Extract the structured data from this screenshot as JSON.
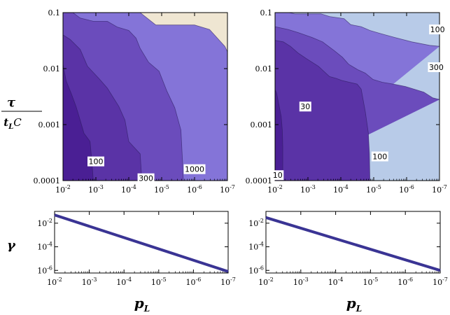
{
  "labels": {
    "y_top": "τ",
    "y_top_denominator": "t",
    "y_top_denominator_sub": "L",
    "y_top_denominator_tail": "C",
    "y_bottom": "γ",
    "x_main": "p",
    "x_main_sub": "L"
  },
  "colors": {
    "c1": "#4a1f94",
    "c2": "#5a33a6",
    "c3": "#6b4cbc",
    "c4": "#8474d8",
    "c5_left": "#efe6d2",
    "c5_right": "#b8cbe8",
    "line": "#3a3494"
  },
  "chart_data": [
    {
      "type": "contour",
      "xscale": "log",
      "yscale": "log",
      "xlim": [
        0.01,
        1e-07
      ],
      "ylim": [
        0.0001,
        0.1
      ],
      "x_ticks": [
        {
          "base": "10",
          "exp": "-2"
        },
        {
          "base": "10",
          "exp": "-3"
        },
        {
          "base": "10",
          "exp": "-4"
        },
        {
          "base": "10",
          "exp": "-5"
        },
        {
          "base": "10",
          "exp": "-6"
        },
        {
          "base": "10",
          "exp": "-7"
        }
      ],
      "y_ticks": [
        "0.1",
        "0.01",
        "0.001",
        "0.0001"
      ],
      "contour_labels": [
        {
          "text": "100",
          "x": 0.001,
          "y": 0.00022
        },
        {
          "text": "300",
          "x": 3e-05,
          "y": 0.00011
        },
        {
          "text": "1000",
          "x": 1e-06,
          "y": 0.00016
        }
      ],
      "regions": [
        {
          "level": "c5_left",
          "boundary": [
            [
              0.01,
              0.1
            ],
            [
              4.5e-05,
              0.1
            ],
            [
              1.5e-05,
              0.06
            ],
            [
              1e-06,
              0.06
            ],
            [
              3.5e-07,
              0.05
            ],
            [
              1.2e-07,
              0.025
            ],
            [
              1e-07,
              0.02
            ],
            [
              1e-07,
              0.0001
            ]
          ]
        },
        {
          "level": "c4",
          "boundary": [
            [
              0.01,
              0.1
            ],
            [
              0.005,
              0.1
            ],
            [
              0.003,
              0.08
            ],
            [
              0.0012,
              0.07
            ],
            [
              0.00045,
              0.07
            ],
            [
              0.00022,
              0.055
            ],
            [
              0.0001,
              0.048
            ],
            [
              6e-05,
              0.035
            ],
            [
              4.5e-05,
              0.023
            ],
            [
              2.5e-05,
              0.013
            ],
            [
              1.2e-05,
              0.009
            ],
            [
              7e-06,
              0.004
            ],
            [
              4e-06,
              0.002
            ],
            [
              2.6e-06,
              0.0008
            ],
            [
              2.3e-06,
              0.0002
            ],
            [
              2.2e-06,
              0.0001
            ]
          ]
        },
        {
          "level": "c3",
          "boundary": [
            [
              0.01,
              0.04
            ],
            [
              0.006,
              0.033
            ],
            [
              0.003,
              0.022
            ],
            [
              0.0018,
              0.011
            ],
            [
              0.0008,
              0.0066
            ],
            [
              0.00045,
              0.0045
            ],
            [
              0.0002,
              0.0021
            ],
            [
              0.00013,
              0.0012
            ],
            [
              0.0001,
              0.0005
            ],
            [
              4.5e-05,
              0.0003
            ],
            [
              4e-05,
              0.0001
            ]
          ]
        },
        {
          "level": "c2",
          "boundary": [
            [
              0.01,
              0.012
            ],
            [
              0.008,
              0.006
            ],
            [
              0.0055,
              0.0035
            ],
            [
              0.004,
              0.0021
            ],
            [
              0.003,
              0.0012
            ],
            [
              0.0023,
              0.0007
            ],
            [
              0.0015,
              0.0005
            ],
            [
              0.0013,
              0.0002
            ],
            [
              0.0012,
              0.0001
            ]
          ]
        }
      ]
    },
    {
      "type": "contour",
      "xscale": "log",
      "yscale": "log",
      "xlim": [
        0.01,
        1e-07
      ],
      "ylim": [
        0.0001,
        0.1
      ],
      "x_ticks": [
        {
          "base": "10",
          "exp": "-2"
        },
        {
          "base": "10",
          "exp": "-3"
        },
        {
          "base": "10",
          "exp": "-4"
        },
        {
          "base": "10",
          "exp": "-5"
        },
        {
          "base": "10",
          "exp": "-6"
        },
        {
          "base": "10",
          "exp": "-7"
        }
      ],
      "y_ticks": [
        "0.1",
        "0.01",
        "0.001",
        "0.0001"
      ],
      "contour_labels": [
        {
          "text": "10",
          "x": 0.0083,
          "y": 0.000125
        },
        {
          "text": "30",
          "x": 0.0012,
          "y": 0.0021
        },
        {
          "text": "100",
          "x": 6.5e-06,
          "y": 0.00027
        },
        {
          "text": "300",
          "x": 1.25e-07,
          "y": 0.0106
        },
        {
          "text": "100",
          "x": 1.15e-07,
          "y": 0.05
        }
      ],
      "regions": [
        {
          "level": "c5_right",
          "boundary": [
            [
              0.01,
              0.1
            ],
            [
              0.0038,
              0.1
            ],
            [
              0.0025,
              0.095
            ],
            [
              0.0004,
              0.095
            ],
            [
              0.00022,
              0.085
            ],
            [
              8e-05,
              0.078
            ],
            [
              5e-05,
              0.061
            ],
            [
              2.4e-05,
              0.056
            ],
            [
              1.3e-05,
              0.048
            ],
            [
              6e-06,
              0.042
            ],
            [
              2.3e-06,
              0.036
            ],
            [
              7e-07,
              0.03
            ],
            [
              2e-07,
              0.026
            ],
            [
              1e-07,
              0.025
            ]
          ]
        },
        {
          "level": "c4",
          "boundary": [
            [
              0.01,
              0.056
            ],
            [
              0.004,
              0.05
            ],
            [
              0.002,
              0.044
            ],
            [
              0.00075,
              0.036
            ],
            [
              0.00036,
              0.03
            ],
            [
              0.00016,
              0.021
            ],
            [
              9e-05,
              0.016
            ],
            [
              5.8e-05,
              0.012
            ],
            [
              3e-05,
              0.0095
            ],
            [
              1.8e-05,
              0.0083
            ],
            [
              1.05e-05,
              0.0064
            ],
            [
              5.5e-06,
              0.0057
            ],
            [
              2.2e-06,
              0.0052
            ],
            [
              1.1e-06,
              0.0048
            ],
            [
              3e-07,
              0.0038
            ],
            [
              1.6e-07,
              0.003
            ],
            [
              1e-07,
              0.0028
            ]
          ]
        },
        {
          "level": "c3",
          "boundary": [
            [
              0.01,
              0.032
            ],
            [
              0.0056,
              0.03
            ],
            [
              0.0034,
              0.025
            ],
            [
              0.002,
              0.019
            ],
            [
              0.0011,
              0.015
            ],
            [
              0.00048,
              0.011
            ],
            [
              0.00022,
              0.0072
            ],
            [
              0.00014,
              0.0067
            ],
            [
              9e-05,
              0.0061
            ],
            [
              5.5e-05,
              0.0057
            ],
            [
              3.2e-05,
              0.0053
            ],
            [
              2.4e-05,
              0.0043
            ],
            [
              1.8e-05,
              0.0017
            ],
            [
              1.45e-05,
              0.0007
            ],
            [
              1.35e-05,
              0.0003
            ],
            [
              1.3e-05,
              0.0001
            ]
          ]
        },
        {
          "level": "c2",
          "boundary": [
            [
              0.01,
              0.0042
            ],
            [
              0.009,
              0.0037
            ],
            [
              0.008,
              0.0026
            ],
            [
              0.0065,
              0.0014
            ],
            [
              0.006,
              0.0008
            ],
            [
              0.0058,
              0.0004
            ],
            [
              0.0058,
              0.0001
            ]
          ]
        }
      ]
    },
    {
      "type": "line",
      "xscale": "log",
      "yscale": "log",
      "xlim": [
        0.01,
        1e-07
      ],
      "ylim": [
        6e-07,
        0.1
      ],
      "x_ticks": [
        {
          "base": "10",
          "exp": "-2"
        },
        {
          "base": "10",
          "exp": "-3"
        },
        {
          "base": "10",
          "exp": "-4"
        },
        {
          "base": "10",
          "exp": "-5"
        },
        {
          "base": "10",
          "exp": "-6"
        },
        {
          "base": "10",
          "exp": "-7"
        }
      ],
      "y_ticks": [
        {
          "base": "10",
          "exp": "-2"
        },
        {
          "base": "10",
          "exp": "-4"
        },
        {
          "base": "10",
          "exp": "-6"
        }
      ],
      "series": [
        {
          "x": [
            0.01,
            1e-07
          ],
          "y": [
            0.05,
            8e-07
          ]
        }
      ]
    },
    {
      "type": "line",
      "xscale": "log",
      "yscale": "log",
      "xlim": [
        0.01,
        1e-07
      ],
      "ylim": [
        6e-07,
        0.1
      ],
      "x_ticks": [
        {
          "base": "10",
          "exp": "-2"
        },
        {
          "base": "10",
          "exp": "-3"
        },
        {
          "base": "10",
          "exp": "-4"
        },
        {
          "base": "10",
          "exp": "-5"
        },
        {
          "base": "10",
          "exp": "-6"
        },
        {
          "base": "10",
          "exp": "-7"
        }
      ],
      "y_ticks": [
        {
          "base": "10",
          "exp": "-2"
        },
        {
          "base": "10",
          "exp": "-4"
        },
        {
          "base": "10",
          "exp": "-6"
        }
      ],
      "series": [
        {
          "x": [
            0.01,
            1e-07
          ],
          "y": [
            0.03,
            1e-06
          ]
        }
      ]
    }
  ]
}
